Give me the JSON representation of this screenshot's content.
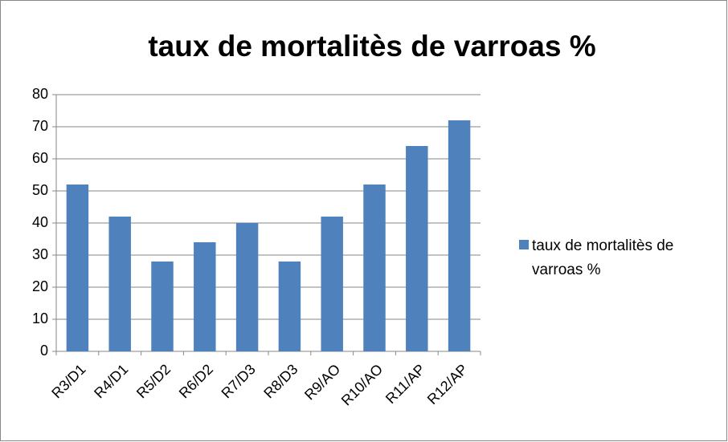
{
  "chart_data": {
    "type": "bar",
    "title": "taux de mortalitès de varroas %",
    "categories": [
      "R3/D1",
      "R4/D1",
      "R5/D2",
      "R6/D2",
      "R7/D3",
      "R8/D3",
      "R9/AO",
      "R10/AO",
      "R11/AP",
      "R12/AP"
    ],
    "series": [
      {
        "name": "taux de mortalitès de varroas %",
        "color": "#4f81bd",
        "values": [
          52,
          42,
          28,
          34,
          40,
          28,
          42,
          52,
          64,
          72
        ]
      }
    ],
    "ylim": [
      0,
      80
    ],
    "yticks": [
      0,
      10,
      20,
      30,
      40,
      50,
      60,
      70,
      80
    ],
    "grid": true,
    "legend": "right"
  }
}
